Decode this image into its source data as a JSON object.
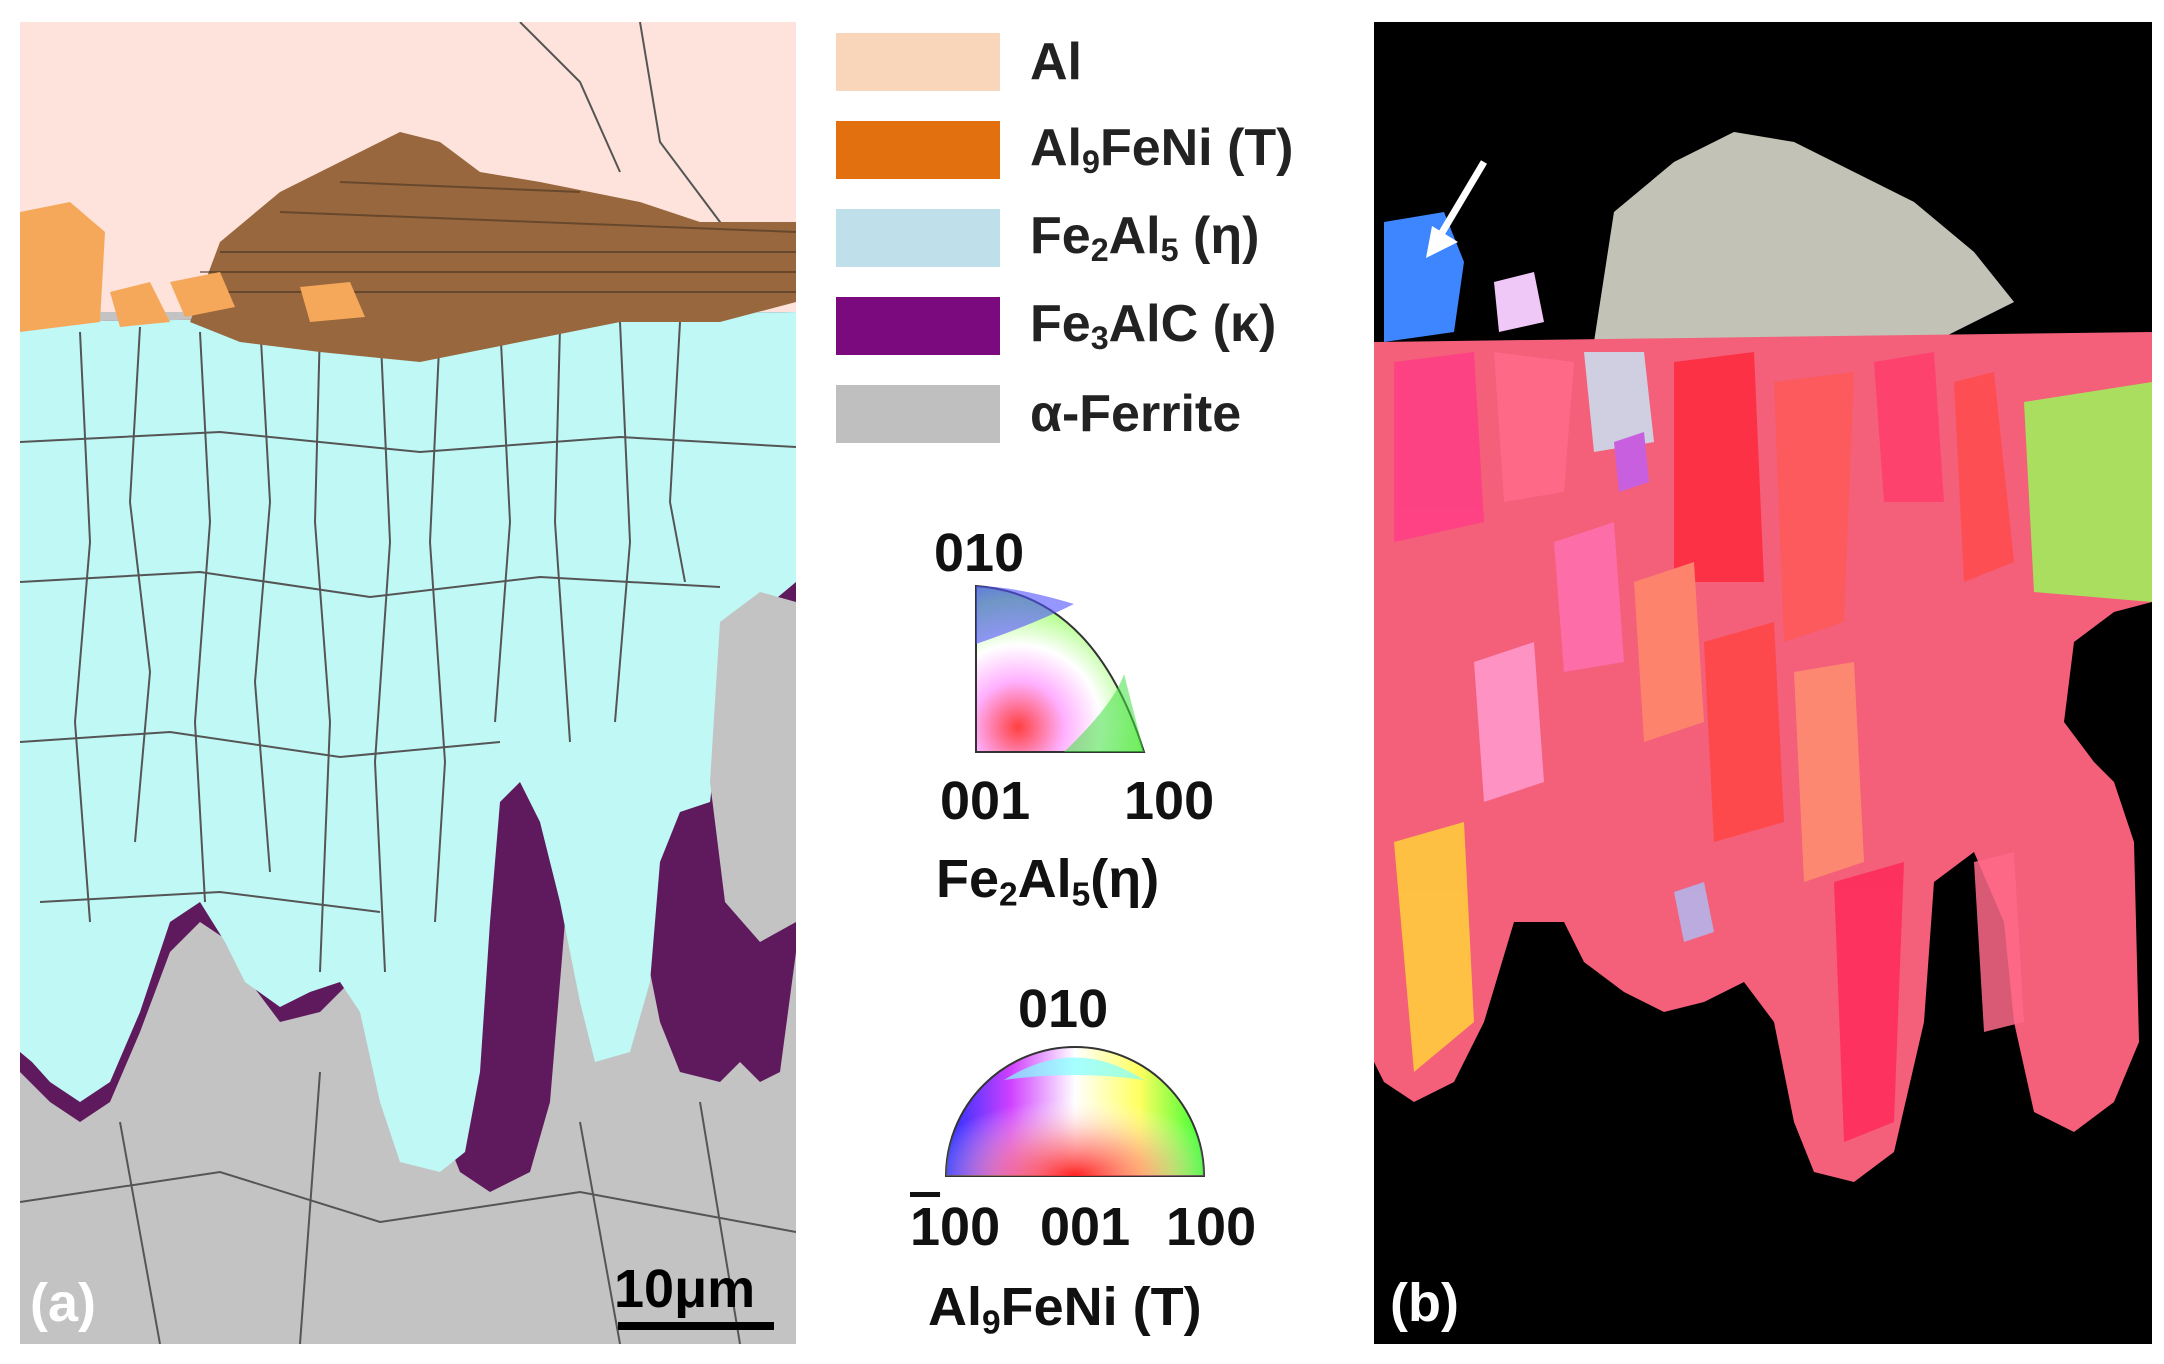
{
  "panels": {
    "a": {
      "label": "(a)",
      "scale_bar": "10μm"
    },
    "b": {
      "label": "(b)"
    }
  },
  "legend": {
    "items": [
      {
        "text": "Al",
        "color": "#f9d5b9"
      },
      {
        "text_main": "Al",
        "text_sub": "9",
        "text_rest": "FeNi (T)",
        "color": "#e3700f"
      },
      {
        "text_main": "Fe",
        "text_sub": "2",
        "text_mid": "Al",
        "text_sub2": "5",
        "text_rest": "(η)",
        "color": "#bfe0ea"
      },
      {
        "text_main": "Fe",
        "text_sub": "3",
        "text_rest": "AlC (κ)",
        "color": "#7b0a7e"
      },
      {
        "text": "α-Ferrite",
        "color": "#bfbfbf"
      }
    ]
  },
  "ipf_eta": {
    "top": "010",
    "left": "001",
    "right": "100",
    "phase_main": "Fe",
    "phase_sub1": "2",
    "phase_mid": "Al",
    "phase_sub2": "5",
    "phase_rest": "(η)"
  },
  "ipf_tau": {
    "top": "010",
    "left_bar": "1",
    "left_rest": "00",
    "center": "001",
    "right": "100",
    "phase_main": "Al",
    "phase_sub": "9",
    "phase_rest": "FeNi (T)"
  },
  "colors": {
    "al_matrix": "#fde3dc",
    "eta": "#bff8f5",
    "tau": "#98673d",
    "kappa": "#5e1a5c",
    "ferrite": "#c3c3c3",
    "tau_grain": "#f6a85a"
  }
}
